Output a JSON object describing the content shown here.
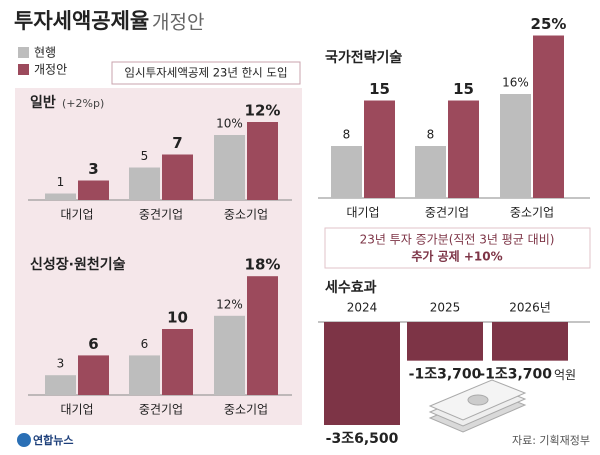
{
  "title": {
    "main": "투자세액공제율",
    "sub": "개정안"
  },
  "panel_note": "임시투자세액공제 23년 한시 도입",
  "chart_data": [
    {
      "type": "bar",
      "title": "일반",
      "subtitle": "(+2%p)",
      "categories": [
        "대기업",
        "중견기업",
        "중소기업"
      ],
      "series": [
        {
          "name": "현행",
          "color": "#bdbdbd",
          "values": [
            1,
            5,
            10
          ],
          "value_labels": [
            "1",
            "5",
            "10%"
          ]
        },
        {
          "name": "개정안",
          "color": "#9c4a5c",
          "values": [
            3,
            7,
            12
          ],
          "value_labels": [
            "3",
            "7",
            "12%"
          ]
        }
      ]
    },
    {
      "type": "bar",
      "title": "신성장·원천기술",
      "categories": [
        "대기업",
        "중견기업",
        "중소기업"
      ],
      "series": [
        {
          "color": "#bdbdbd",
          "values": [
            3,
            6,
            12
          ],
          "value_labels": [
            "3",
            "6",
            "12%"
          ]
        },
        {
          "color": "#9c4a5c",
          "values": [
            6,
            10,
            18
          ],
          "value_labels": [
            "6",
            "10",
            "18%"
          ]
        }
      ]
    },
    {
      "type": "bar",
      "title": "국가전략기술",
      "categories": [
        "대기업",
        "중견기업",
        "중소기업"
      ],
      "series": [
        {
          "color": "#bdbdbd",
          "values": [
            8,
            8,
            16
          ],
          "value_labels": [
            "8",
            "8",
            "16%"
          ]
        },
        {
          "color": "#9c4a5c",
          "values": [
            15,
            15,
            25
          ],
          "value_labels": [
            "15",
            "15",
            "25%"
          ]
        }
      ],
      "annotation": [
        "23년 투자 증가분(직전 3년 평균 대비)",
        "추가 공제 +10%"
      ]
    },
    {
      "type": "bar",
      "title": "세수효과",
      "categories": [
        "2024",
        "2025",
        "2026년"
      ],
      "values": [
        -36500,
        -13700,
        -13700
      ],
      "value_labels": [
        "-3조6,500",
        "-1조3,700",
        "-1조3,700"
      ],
      "unit": "억원",
      "color": "#7d3446"
    }
  ],
  "source": "자료: 기획재정부",
  "logo": "연합뉴스"
}
